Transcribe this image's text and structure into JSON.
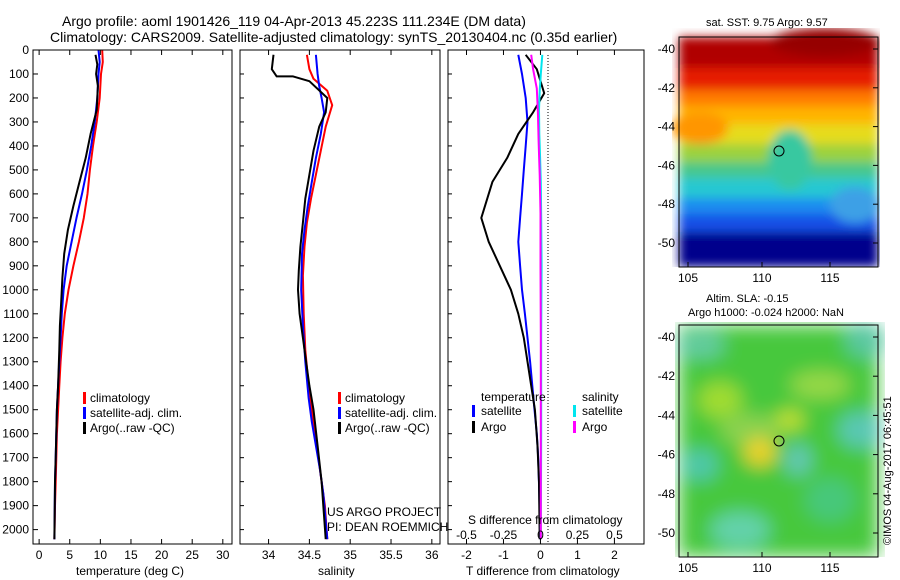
{
  "header": {
    "line1": "Argo profile: aoml 1901426_119 04-Apr-2013 45.223S 111.234E (DM data)",
    "line2": "Climatology: CARS2009. Satellite-adjusted climatology: synTS_20130404.nc (0.35d earlier)"
  },
  "colors": {
    "climatology": "#ff0000",
    "satellite": "#0000ff",
    "argo": "#000000",
    "salinity_satellite": "#00e5ee",
    "salinity_argo": "#ff00ff"
  },
  "project_label": {
    "line1": "US ARGO PROJECT",
    "line2": "PI: DEAN ROEMMICH"
  },
  "watermark": "©IMOS 04-Aug-2017 06:45:51",
  "map_sst": {
    "title": "sat. SST: 9.75 Argo: 9.57",
    "ylabels": [
      "-40",
      "-42",
      "-44",
      "-46",
      "-48",
      "-50"
    ],
    "xlabels": [
      "105",
      "110",
      "115"
    ]
  },
  "map_sla": {
    "title1": "Altim. SLA: -0.15",
    "title2": "Argo h1000: -0.024 h2000: NaN",
    "ylabels": [
      "-40",
      "-42",
      "-44",
      "-46",
      "-48",
      "-50"
    ],
    "xlabels": [
      "105",
      "110",
      "115"
    ]
  },
  "chart_data": [
    {
      "type": "line",
      "xlabel": "temperature (deg C)",
      "ylabel": "",
      "xlim": [
        -1,
        31.5
      ],
      "ylim": [
        2060,
        0
      ],
      "xticks": [
        "0",
        "5",
        "10",
        "15",
        "20",
        "25",
        "30"
      ],
      "yticks": [
        "0",
        "100",
        "200",
        "300",
        "400",
        "500",
        "600",
        "700",
        "800",
        "900",
        "1000",
        "1100",
        "1200",
        "1300",
        "1400",
        "1500",
        "1600",
        "1700",
        "1800",
        "1900",
        "2000"
      ],
      "legend": [
        "climatology",
        "satellite-adj. clim.",
        "Argo(..raw -QC)"
      ],
      "series": [
        {
          "name": "climatology",
          "x": [
            10.3,
            10.4,
            10.1,
            9.9,
            9.4,
            8.8,
            8.3,
            7.9,
            7.3,
            6.5,
            5.6,
            4.8,
            4.2,
            3.8,
            3.5,
            3.3,
            3.1,
            2.9,
            2.8,
            2.7,
            2.6,
            2.5
          ],
          "y": [
            0,
            50,
            100,
            200,
            300,
            400,
            500,
            600,
            700,
            800,
            900,
            1000,
            1100,
            1200,
            1300,
            1400,
            1500,
            1600,
            1700,
            1800,
            1900,
            2040
          ]
        },
        {
          "name": "satellite-adj. clim.",
          "x": [
            9.7,
            9.9,
            9.7,
            9.5,
            9.1,
            8.5,
            7.8,
            7.0,
            6.1,
            5.3,
            4.5,
            4.0,
            3.7,
            3.5,
            3.3,
            3.1,
            2.9,
            2.8,
            2.7,
            2.6,
            2.5
          ],
          "y": [
            0,
            50,
            100,
            200,
            300,
            400,
            500,
            600,
            700,
            800,
            900,
            1000,
            1100,
            1200,
            1300,
            1400,
            1500,
            1600,
            1700,
            1800,
            2040
          ]
        },
        {
          "name": "Argo(..raw -QC)",
          "x": [
            9.2,
            9.5,
            9.3,
            9.6,
            9.4,
            8.4,
            7.6,
            6.6,
            5.6,
            4.7,
            4.1,
            3.8,
            3.6,
            3.4,
            3.3,
            3.1,
            2.9,
            2.8,
            2.7,
            2.6,
            2.5
          ],
          "y": [
            20,
            60,
            100,
            150,
            250,
            350,
            450,
            550,
            650,
            750,
            850,
            950,
            1050,
            1150,
            1250,
            1400,
            1500,
            1600,
            1700,
            1800,
            2040
          ]
        }
      ]
    },
    {
      "type": "line",
      "xlabel": "salinity",
      "xlim": [
        33.65,
        36.1
      ],
      "ylim": [
        2060,
        0
      ],
      "xticks": [
        "34",
        "34.5",
        "35",
        "35.5",
        "36"
      ],
      "legend": [
        "climatology",
        "satellite-adj. clim.",
        "Argo(..raw -QC)"
      ],
      "series": [
        {
          "name": "climatology",
          "x": [
            34.47,
            34.5,
            34.55,
            34.72,
            34.78,
            34.7,
            34.64,
            34.58,
            34.52,
            34.47,
            34.44,
            34.42,
            34.43,
            34.45,
            34.49,
            34.53,
            34.57,
            34.61,
            34.65,
            34.69,
            34.72
          ],
          "y": [
            20,
            80,
            120,
            170,
            230,
            320,
            420,
            520,
            620,
            720,
            820,
            940,
            1100,
            1250,
            1400,
            1500,
            1600,
            1700,
            1800,
            1900,
            2040
          ]
        },
        {
          "name": "satellite-adj. clim.",
          "x": [
            34.58,
            34.6,
            34.62,
            34.65,
            34.68,
            34.64,
            34.58,
            34.53,
            34.48,
            34.44,
            34.41,
            34.4,
            34.42,
            34.45,
            34.49,
            34.53,
            34.58,
            34.63,
            34.67,
            34.72
          ],
          "y": [
            20,
            100,
            150,
            200,
            260,
            350,
            450,
            550,
            650,
            750,
            850,
            1000,
            1150,
            1300,
            1450,
            1550,
            1650,
            1750,
            1850,
            2040
          ]
        },
        {
          "name": "Argo(..raw -QC)",
          "x": [
            34.06,
            34.04,
            34.1,
            34.3,
            34.5,
            34.72,
            34.7,
            34.62,
            34.55,
            34.5,
            34.45,
            34.42,
            34.39,
            34.37,
            34.36,
            34.38,
            34.42,
            34.46,
            34.5,
            34.55,
            34.6,
            34.65,
            34.7
          ],
          "y": [
            20,
            80,
            110,
            110,
            130,
            200,
            260,
            320,
            420,
            520,
            620,
            720,
            820,
            920,
            1000,
            1100,
            1200,
            1300,
            1400,
            1500,
            1650,
            1800,
            2040
          ]
        }
      ]
    },
    {
      "type": "line",
      "xlabel": "T difference from climatology",
      "xlabel_top": "S difference from climatology",
      "xlim": [
        -2.5,
        2.8
      ],
      "ylim": [
        2060,
        0
      ],
      "xticks": [
        "-2",
        "-1",
        "0",
        "1",
        "2"
      ],
      "xticks_top": [
        "-0.5",
        "-0.25",
        "0",
        "0.25",
        "0.5"
      ],
      "legend_left": {
        "title": "temperature",
        "items": [
          "satellite",
          "Argo"
        ]
      },
      "legend_right": {
        "title": "salinity",
        "items": [
          "satellite",
          "Argo"
        ]
      },
      "series": [
        {
          "name": "T satellite",
          "x": [
            -0.6,
            -0.5,
            -0.4,
            -0.35,
            -0.4,
            -0.45,
            -0.5,
            -0.55,
            -0.6,
            -0.55,
            -0.5,
            -0.42,
            -0.35,
            -0.28,
            -0.22,
            -0.16,
            -0.1,
            -0.06,
            -0.03,
            -0.01
          ],
          "y": [
            20,
            100,
            200,
            300,
            400,
            500,
            600,
            700,
            800,
            900,
            1000,
            1100,
            1200,
            1300,
            1400,
            1500,
            1600,
            1700,
            1850,
            2040
          ]
        },
        {
          "name": "T Argo",
          "x": [
            -0.4,
            -0.1,
            0.1,
            -0.2,
            -0.6,
            -0.9,
            -1.3,
            -1.6,
            -1.4,
            -1.1,
            -0.8,
            -0.6,
            -0.45,
            -0.35,
            -0.25,
            -0.15,
            -0.08,
            -0.04,
            -0.02
          ],
          "y": [
            20,
            80,
            180,
            260,
            350,
            450,
            550,
            700,
            800,
            900,
            1000,
            1100,
            1200,
            1300,
            1400,
            1500,
            1650,
            1800,
            2040
          ]
        },
        {
          "name": "S satellite",
          "x": [
            0.05,
            0.01,
            -0.02,
            -0.04,
            -0.03,
            -0.01,
            0.01,
            0.02,
            0.03,
            0.02,
            0.02,
            0.01
          ],
          "y": [
            20,
            100,
            170,
            250,
            350,
            450,
            550,
            700,
            900,
            1200,
            1600,
            2040
          ]
        },
        {
          "name": "S Argo",
          "x": [
            -0.25,
            -0.2,
            -0.1,
            -0.07,
            -0.05,
            -0.02,
            0.0,
            0.0,
            0.01,
            0.01,
            0.01
          ],
          "y": [
            20,
            80,
            160,
            260,
            380,
            520,
            680,
            900,
            1200,
            1600,
            2040
          ]
        }
      ]
    }
  ]
}
